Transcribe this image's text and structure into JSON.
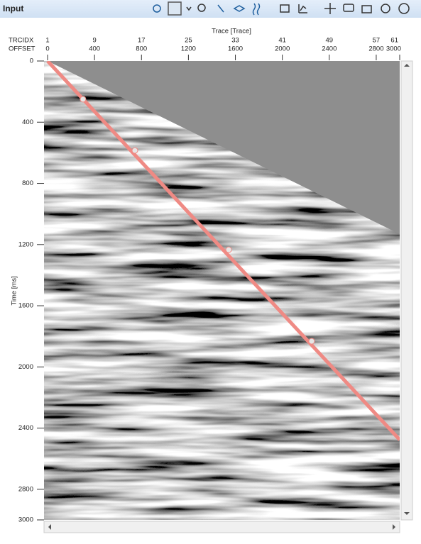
{
  "panel": {
    "title": "Input"
  },
  "plot": {
    "x_title": "Trace [Trace]",
    "y_title": "Time [ms]",
    "trcidx_label": "TRCIDX",
    "offset_label": "OFFSET",
    "trcidx_lim": [
      1,
      61
    ],
    "trcidx_ticks": [
      1,
      9,
      17,
      25,
      33,
      41,
      49,
      57,
      61
    ],
    "offset_lim": [
      0,
      3000
    ],
    "offset_ticks": [
      0,
      400,
      800,
      1200,
      1600,
      2000,
      2400,
      2800,
      3000
    ],
    "ylim": [
      0,
      3000
    ],
    "yticks": [
      0,
      400,
      800,
      1200,
      1600,
      2000,
      2400,
      2800,
      3000
    ],
    "pick_line": {
      "color": "#ef8a84",
      "offsets": [
        0,
        3000
      ],
      "times": [
        0,
        2476
      ]
    },
    "picks": {
      "offsets": [
        302,
        744,
        1543,
        2250
      ],
      "times": [
        250,
        585,
        1234,
        1832
      ]
    }
  }
}
